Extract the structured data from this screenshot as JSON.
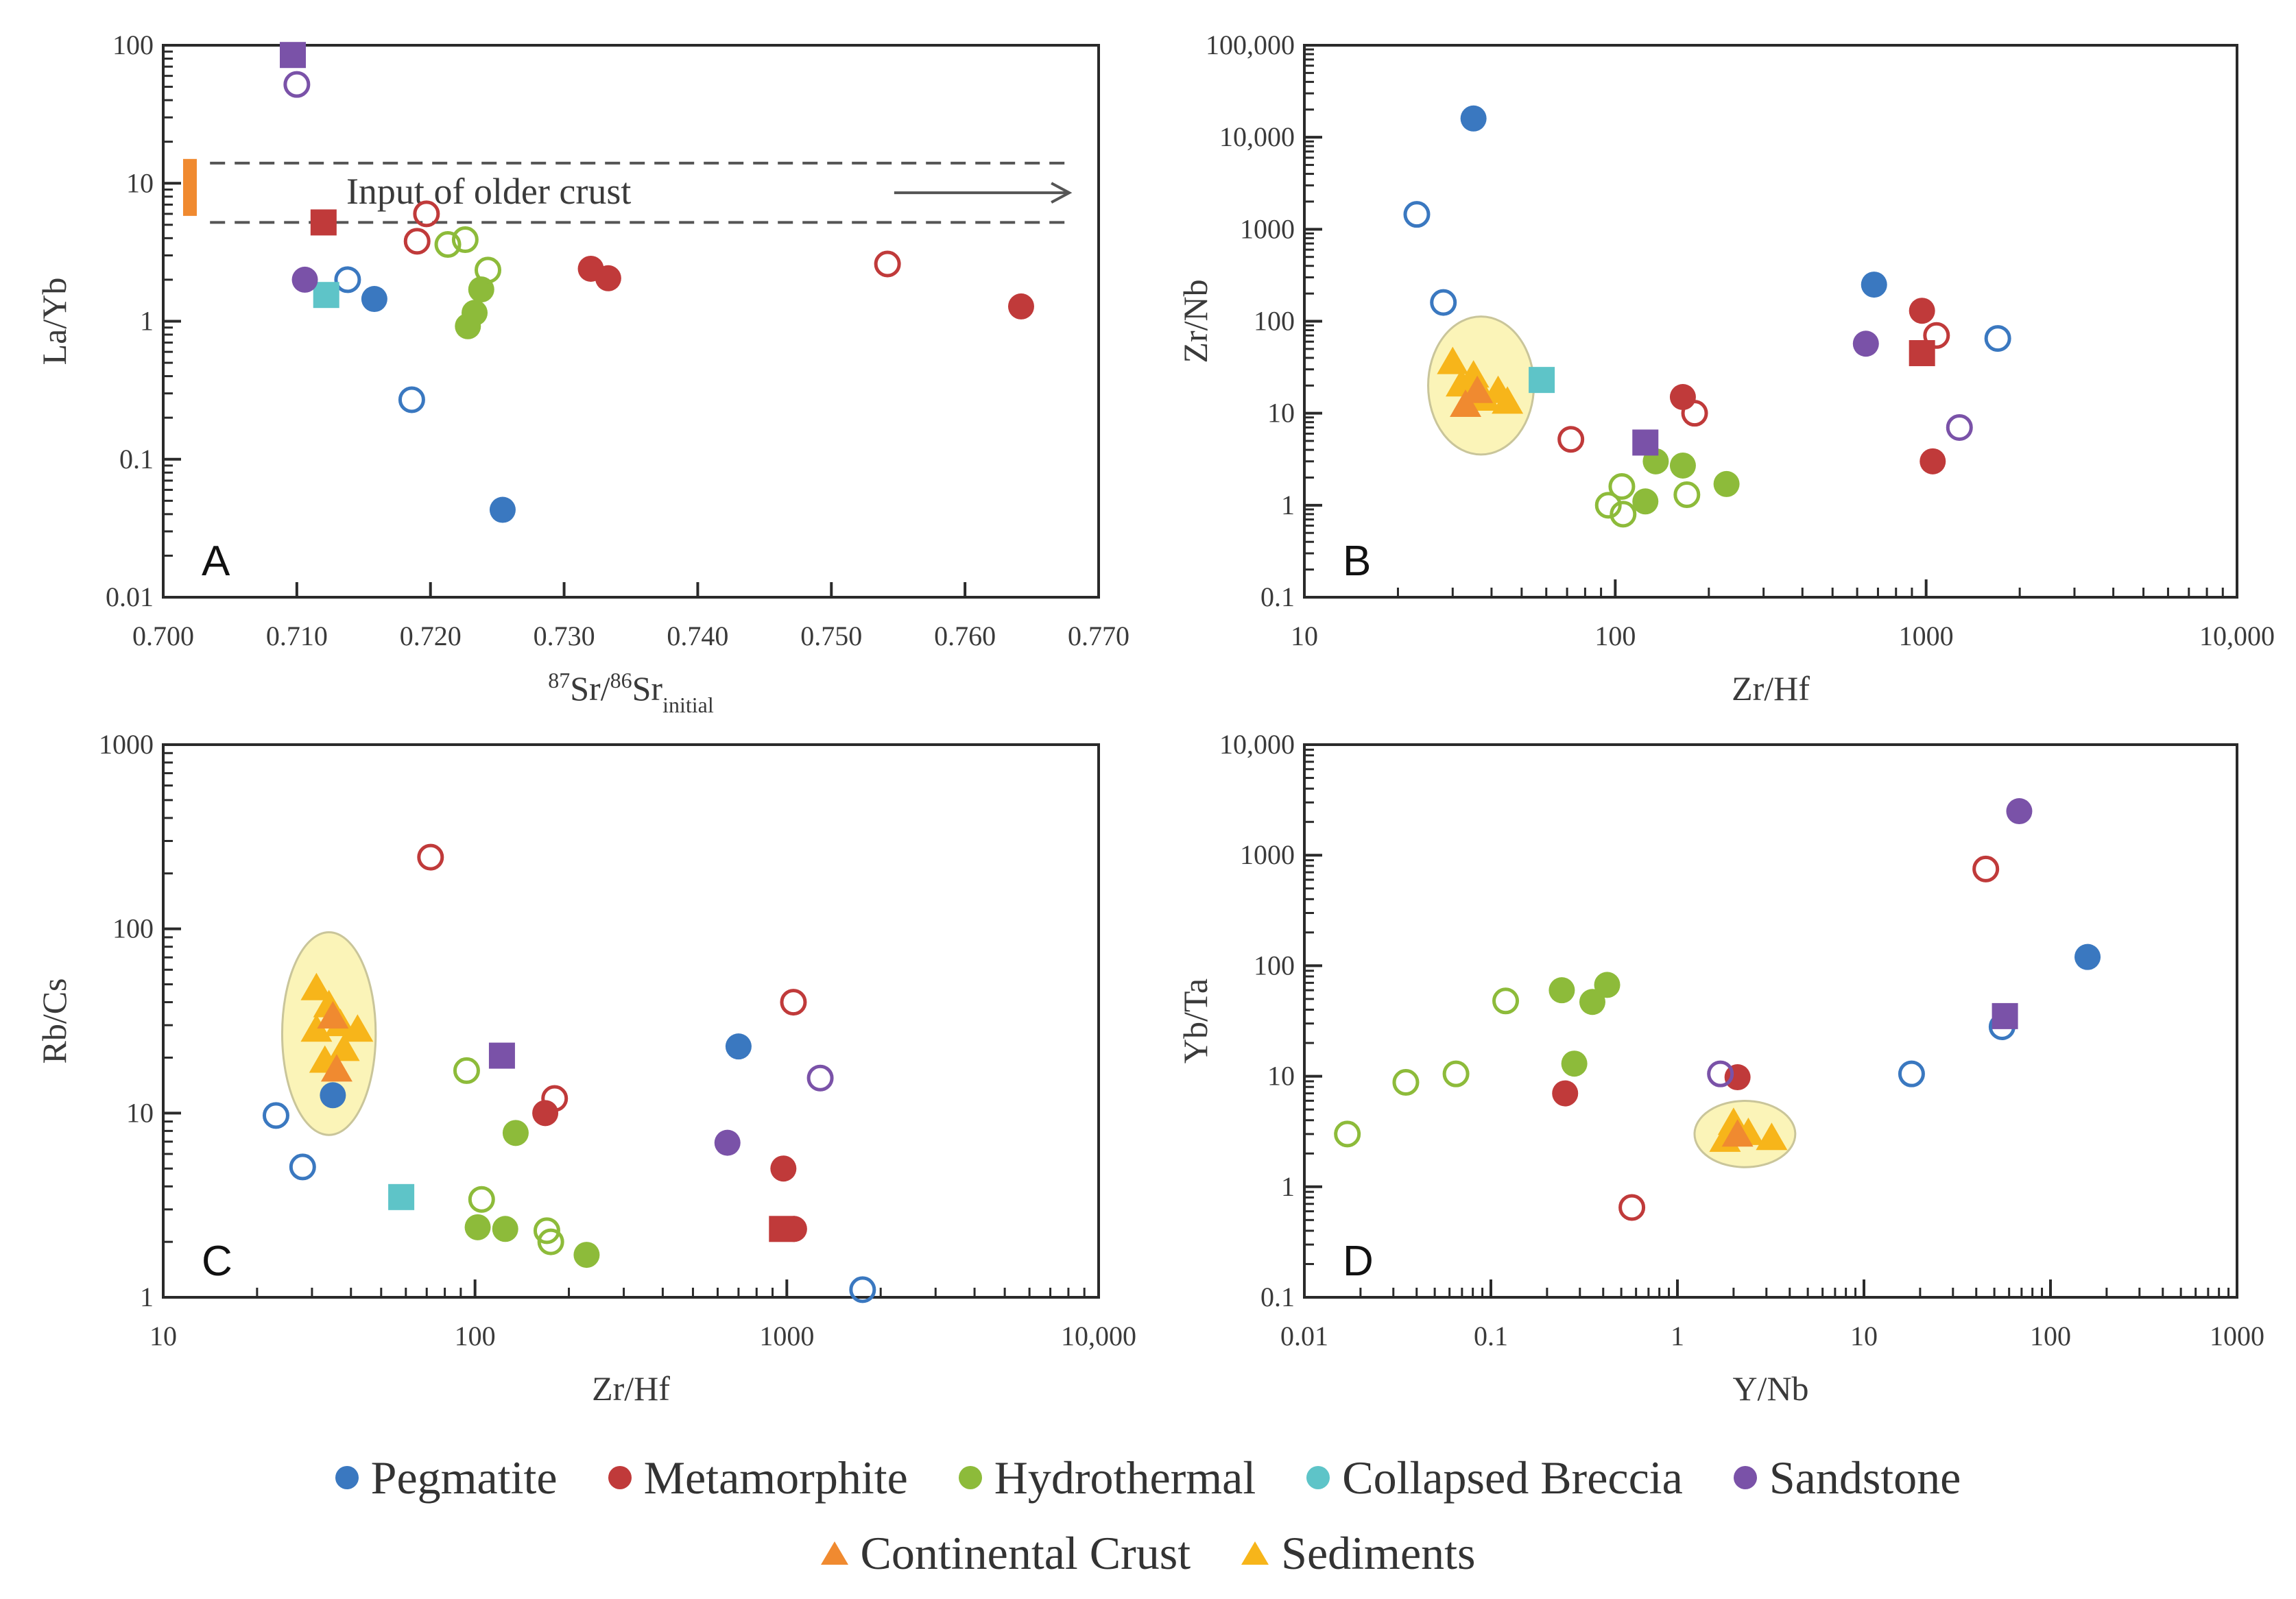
{
  "colors": {
    "Pegmatite": "#3a78c0",
    "Metamorphite": "#c03a3a",
    "Hydrothermal": "#8dbb3a",
    "Collapsed Breccia": "#5ec4c8",
    "Sandstone": "#7a52a8",
    "Continental Crust": "#f08a30",
    "Sediments": "#f7b51a",
    "ellipse": "#fbf4b8"
  },
  "legend": {
    "row1": [
      {
        "label": "Pegmatite",
        "color_key": "Pegmatite",
        "marker": "circle"
      },
      {
        "label": "Metamorphite",
        "color_key": "Metamorphite",
        "marker": "circle"
      },
      {
        "label": "Hydrothermal",
        "color_key": "Hydrothermal",
        "marker": "circle"
      },
      {
        "label": "Collapsed Breccia",
        "color_key": "Collapsed Breccia",
        "marker": "circle"
      },
      {
        "label": "Sandstone",
        "color_key": "Sandstone",
        "marker": "circle"
      }
    ],
    "row2": [
      {
        "label": "Continental Crust",
        "color_key": "Continental Crust",
        "marker": "triangle"
      },
      {
        "label": "Sediments",
        "color_key": "Sediments",
        "marker": "triangle"
      }
    ]
  },
  "chart_data": [
    {
      "panel": "A",
      "type": "scatter",
      "xscale": "linear",
      "yscale": "log",
      "xlim": [
        0.7,
        0.77
      ],
      "ylim": [
        0.01,
        100
      ],
      "xticks": [
        0.7,
        0.71,
        0.72,
        0.73,
        0.74,
        0.75,
        0.76,
        0.77
      ],
      "xtick_labels": [
        "0.700",
        "0.710",
        "0.720",
        "0.730",
        "0.740",
        "0.750",
        "0.760",
        "0.770"
      ],
      "yticks": [
        0.01,
        0.1,
        1,
        10,
        100
      ],
      "ytick_labels": [
        "0.01",
        "0.1",
        "1",
        "10",
        "100"
      ],
      "xlabel": {
        "base": "Sr/",
        "sup1": "87",
        "sup2": "86",
        "mid": "Sr",
        "sub": "initial"
      },
      "ylabel": "La/Yb",
      "annotation": "Input of older crust",
      "band": [
        5.2,
        14
      ],
      "orange_bar": [
        0.702,
        5.8,
        15
      ],
      "points": [
        {
          "s": "Pegmatite",
          "x": 0.7158,
          "y": 1.45,
          "f": true,
          "m": "o"
        },
        {
          "s": "Pegmatite",
          "x": 0.7254,
          "y": 0.043,
          "f": true,
          "m": "o"
        },
        {
          "s": "Pegmatite",
          "x": 0.7138,
          "y": 2.0,
          "f": false,
          "m": "o"
        },
        {
          "s": "Pegmatite",
          "x": 0.7186,
          "y": 0.27,
          "f": false,
          "m": "o"
        },
        {
          "s": "Metamorphite",
          "x": 0.732,
          "y": 2.4,
          "f": true,
          "m": "o"
        },
        {
          "s": "Metamorphite",
          "x": 0.7333,
          "y": 2.05,
          "f": true,
          "m": "o"
        },
        {
          "s": "Metamorphite",
          "x": 0.7642,
          "y": 1.28,
          "f": true,
          "m": "o"
        },
        {
          "s": "Metamorphite",
          "x": 0.7197,
          "y": 6.0,
          "f": false,
          "m": "o"
        },
        {
          "s": "Metamorphite",
          "x": 0.719,
          "y": 3.8,
          "f": false,
          "m": "o"
        },
        {
          "s": "Metamorphite",
          "x": 0.7542,
          "y": 2.6,
          "f": false,
          "m": "o"
        },
        {
          "s": "Metamorphite",
          "x": 0.712,
          "y": 5.2,
          "f": true,
          "m": "s"
        },
        {
          "s": "Hydrothermal",
          "x": 0.7238,
          "y": 1.7,
          "f": true,
          "m": "o"
        },
        {
          "s": "Hydrothermal",
          "x": 0.7233,
          "y": 1.15,
          "f": true,
          "m": "o"
        },
        {
          "s": "Hydrothermal",
          "x": 0.7228,
          "y": 0.92,
          "f": true,
          "m": "o"
        },
        {
          "s": "Hydrothermal",
          "x": 0.7213,
          "y": 3.6,
          "f": false,
          "m": "o"
        },
        {
          "s": "Hydrothermal",
          "x": 0.7226,
          "y": 3.9,
          "f": false,
          "m": "o"
        },
        {
          "s": "Hydrothermal",
          "x": 0.7243,
          "y": 2.35,
          "f": false,
          "m": "o"
        },
        {
          "s": "Collapsed Breccia",
          "x": 0.7122,
          "y": 1.55,
          "f": true,
          "m": "s"
        },
        {
          "s": "Sandstone",
          "x": 0.7106,
          "y": 2.0,
          "f": true,
          "m": "o"
        },
        {
          "s": "Sandstone",
          "x": 0.71,
          "y": 52,
          "f": false,
          "m": "o"
        },
        {
          "s": "Sandstone",
          "x": 0.7097,
          "y": 85,
          "f": true,
          "m": "s"
        }
      ]
    },
    {
      "panel": "B",
      "type": "scatter",
      "xscale": "log",
      "yscale": "log",
      "xlim": [
        10,
        10000
      ],
      "ylim": [
        0.1,
        100000
      ],
      "xticks": [
        10,
        100,
        1000,
        10000
      ],
      "xtick_labels": [
        "10",
        "100",
        "1000",
        "10,000"
      ],
      "yticks": [
        0.1,
        1,
        10,
        100,
        1000,
        10000,
        100000
      ],
      "ytick_labels": [
        "0.1",
        "1",
        "10",
        "100",
        "1000",
        "10,000",
        "100,000"
      ],
      "xlabel": "Zr/Hf",
      "ylabel": "Zr/Nb",
      "ellipse": {
        "cx": 37,
        "cy": 20,
        "rx_dec": 0.17,
        "ry_dec": 0.75
      },
      "triangles": [
        {
          "s": "Sediments",
          "x": 30,
          "y": 35
        },
        {
          "s": "Sediments",
          "x": 32,
          "y": 20
        },
        {
          "s": "Sediments",
          "x": 35,
          "y": 25
        },
        {
          "s": "Sediments",
          "x": 38,
          "y": 14
        },
        {
          "s": "Sediments",
          "x": 42,
          "y": 17
        },
        {
          "s": "Sediments",
          "x": 45,
          "y": 13
        },
        {
          "s": "Continental Crust",
          "x": 33,
          "y": 12
        },
        {
          "s": "Continental Crust",
          "x": 36,
          "y": 17
        }
      ],
      "points": [
        {
          "s": "Pegmatite",
          "x": 35,
          "y": 16000,
          "f": true,
          "m": "o"
        },
        {
          "s": "Pegmatite",
          "x": 680,
          "y": 250,
          "f": true,
          "m": "o"
        },
        {
          "s": "Pegmatite",
          "x": 23,
          "y": 1450,
          "f": false,
          "m": "o"
        },
        {
          "s": "Pegmatite",
          "x": 28,
          "y": 160,
          "f": false,
          "m": "o"
        },
        {
          "s": "Pegmatite",
          "x": 1700,
          "y": 65,
          "f": false,
          "m": "o"
        },
        {
          "s": "Metamorphite",
          "x": 165,
          "y": 15,
          "f": true,
          "m": "o"
        },
        {
          "s": "Metamorphite",
          "x": 970,
          "y": 130,
          "f": true,
          "m": "o"
        },
        {
          "s": "Metamorphite",
          "x": 1050,
          "y": 3.0,
          "f": true,
          "m": "o"
        },
        {
          "s": "Metamorphite",
          "x": 72,
          "y": 5.2,
          "f": false,
          "m": "o"
        },
        {
          "s": "Metamorphite",
          "x": 180,
          "y": 10,
          "f": false,
          "m": "o"
        },
        {
          "s": "Metamorphite",
          "x": 1080,
          "y": 70,
          "f": false,
          "m": "o"
        },
        {
          "s": "Metamorphite",
          "x": 970,
          "y": 45,
          "f": true,
          "m": "s"
        },
        {
          "s": "Hydrothermal",
          "x": 135,
          "y": 3.0,
          "f": true,
          "m": "o"
        },
        {
          "s": "Hydrothermal",
          "x": 165,
          "y": 2.7,
          "f": true,
          "m": "o"
        },
        {
          "s": "Hydrothermal",
          "x": 228,
          "y": 1.7,
          "f": true,
          "m": "o"
        },
        {
          "s": "Hydrothermal",
          "x": 125,
          "y": 1.1,
          "f": true,
          "m": "o"
        },
        {
          "s": "Hydrothermal",
          "x": 105,
          "y": 1.6,
          "f": false,
          "m": "o"
        },
        {
          "s": "Hydrothermal",
          "x": 95,
          "y": 1.0,
          "f": false,
          "m": "o"
        },
        {
          "s": "Hydrothermal",
          "x": 106,
          "y": 0.8,
          "f": false,
          "m": "o"
        },
        {
          "s": "Hydrothermal",
          "x": 170,
          "y": 1.3,
          "f": false,
          "m": "o"
        },
        {
          "s": "Collapsed Breccia",
          "x": 58,
          "y": 23,
          "f": true,
          "m": "s"
        },
        {
          "s": "Sandstone",
          "x": 640,
          "y": 57,
          "f": true,
          "m": "o"
        },
        {
          "s": "Sandstone",
          "x": 1280,
          "y": 7.0,
          "f": false,
          "m": "o"
        },
        {
          "s": "Sandstone",
          "x": 125,
          "y": 4.8,
          "f": true,
          "m": "s"
        }
      ]
    },
    {
      "panel": "C",
      "type": "scatter",
      "xscale": "log",
      "yscale": "log",
      "xlim": [
        10,
        10000
      ],
      "ylim": [
        1,
        1000
      ],
      "xticks": [
        10,
        100,
        1000,
        10000
      ],
      "xtick_labels": [
        "10",
        "100",
        "1000",
        "10,000"
      ],
      "yticks": [
        1,
        10,
        100,
        1000
      ],
      "ytick_labels": [
        "1",
        "10",
        "100",
        "1000"
      ],
      "xlabel": "Zr/Hf",
      "ylabel": "Rb/Cs",
      "ellipse": {
        "cx": 34,
        "cy": 27,
        "rx_dec": 0.15,
        "ry_dec": 0.55
      },
      "triangles": [
        {
          "s": "Sediments",
          "x": 31,
          "y": 47
        },
        {
          "s": "Sediments",
          "x": 34,
          "y": 38
        },
        {
          "s": "Sediments",
          "x": 31,
          "y": 28
        },
        {
          "s": "Sediments",
          "x": 37,
          "y": 30
        },
        {
          "s": "Sediments",
          "x": 42,
          "y": 28
        },
        {
          "s": "Sediments",
          "x": 33,
          "y": 19
        },
        {
          "s": "Sediments",
          "x": 38,
          "y": 22
        },
        {
          "s": "Continental Crust",
          "x": 35,
          "y": 33
        },
        {
          "s": "Continental Crust",
          "x": 36,
          "y": 17
        }
      ],
      "points": [
        {
          "s": "Pegmatite",
          "x": 35,
          "y": 12.5,
          "f": true,
          "m": "o"
        },
        {
          "s": "Pegmatite",
          "x": 700,
          "y": 23,
          "f": true,
          "m": "o"
        },
        {
          "s": "Pegmatite",
          "x": 23,
          "y": 9.7,
          "f": false,
          "m": "o"
        },
        {
          "s": "Pegmatite",
          "x": 28,
          "y": 5.1,
          "f": false,
          "m": "o"
        },
        {
          "s": "Pegmatite",
          "x": 1750,
          "y": 1.1,
          "f": false,
          "m": "o"
        },
        {
          "s": "Metamorphite",
          "x": 168,
          "y": 10,
          "f": true,
          "m": "o"
        },
        {
          "s": "Metamorphite",
          "x": 975,
          "y": 5.0,
          "f": true,
          "m": "o"
        },
        {
          "s": "Metamorphite",
          "x": 1055,
          "y": 2.35,
          "f": true,
          "m": "o"
        },
        {
          "s": "Metamorphite",
          "x": 72,
          "y": 245,
          "f": false,
          "m": "o"
        },
        {
          "s": "Metamorphite",
          "x": 180,
          "y": 12,
          "f": false,
          "m": "o"
        },
        {
          "s": "Metamorphite",
          "x": 1050,
          "y": 40,
          "f": false,
          "m": "o"
        },
        {
          "s": "Metamorphite",
          "x": 965,
          "y": 2.35,
          "f": true,
          "m": "s"
        },
        {
          "s": "Hydrothermal",
          "x": 135,
          "y": 7.8,
          "f": true,
          "m": "o"
        },
        {
          "s": "Hydrothermal",
          "x": 102,
          "y": 2.4,
          "f": true,
          "m": "o"
        },
        {
          "s": "Hydrothermal",
          "x": 125,
          "y": 2.35,
          "f": true,
          "m": "o"
        },
        {
          "s": "Hydrothermal",
          "x": 228,
          "y": 1.7,
          "f": true,
          "m": "o"
        },
        {
          "s": "Hydrothermal",
          "x": 94,
          "y": 17,
          "f": false,
          "m": "o"
        },
        {
          "s": "Hydrothermal",
          "x": 105,
          "y": 3.4,
          "f": false,
          "m": "o"
        },
        {
          "s": "Hydrothermal",
          "x": 170,
          "y": 2.3,
          "f": false,
          "m": "o"
        },
        {
          "s": "Hydrothermal",
          "x": 175,
          "y": 2.0,
          "f": false,
          "m": "o"
        },
        {
          "s": "Collapsed Breccia",
          "x": 58,
          "y": 3.5,
          "f": true,
          "m": "s"
        },
        {
          "s": "Sandstone",
          "x": 645,
          "y": 6.9,
          "f": true,
          "m": "o"
        },
        {
          "s": "Sandstone",
          "x": 1280,
          "y": 15.5,
          "f": false,
          "m": "o"
        },
        {
          "s": "Sandstone",
          "x": 122,
          "y": 20.5,
          "f": true,
          "m": "s"
        }
      ]
    },
    {
      "panel": "D",
      "type": "scatter",
      "xscale": "log",
      "yscale": "log",
      "xlim": [
        0.01,
        1000
      ],
      "ylim": [
        0.1,
        10000
      ],
      "xticks": [
        0.01,
        0.1,
        1,
        10,
        100,
        1000
      ],
      "xtick_labels": [
        "0.01",
        "0.1",
        "1",
        "10",
        "100",
        "1000"
      ],
      "yticks": [
        0.1,
        1,
        10,
        100,
        1000,
        10000
      ],
      "ytick_labels": [
        "0.1",
        "1",
        "10",
        "100",
        "1000",
        "10,000"
      ],
      "xlabel": "Y/Nb",
      "ylabel": "Yb/Ta",
      "ellipse": {
        "cx": 2.3,
        "cy": 3.0,
        "rx_dec": 0.27,
        "ry_dec": 0.3
      },
      "triangles": [
        {
          "s": "Sediments",
          "x": 2.0,
          "y": 3.7
        },
        {
          "s": "Sediments",
          "x": 2.4,
          "y": 3.0
        },
        {
          "s": "Sediments",
          "x": 3.2,
          "y": 2.7
        },
        {
          "s": "Sediments",
          "x": 1.8,
          "y": 2.6
        },
        {
          "s": "Continental Crust",
          "x": 2.1,
          "y": 2.9
        }
      ],
      "points": [
        {
          "s": "Pegmatite",
          "x": 158,
          "y": 120,
          "f": true,
          "m": "o"
        },
        {
          "s": "Pegmatite",
          "x": 18,
          "y": 10.5,
          "f": false,
          "m": "o"
        },
        {
          "s": "Pegmatite",
          "x": 55,
          "y": 28,
          "f": false,
          "m": "o"
        },
        {
          "s": "Metamorphite",
          "x": 0.25,
          "y": 7.0,
          "f": true,
          "m": "o"
        },
        {
          "s": "Metamorphite",
          "x": 2.1,
          "y": 9.8,
          "f": true,
          "m": "o"
        },
        {
          "s": "Metamorphite",
          "x": 0.57,
          "y": 0.65,
          "f": false,
          "m": "o"
        },
        {
          "s": "Metamorphite",
          "x": 45,
          "y": 750,
          "f": false,
          "m": "o"
        },
        {
          "s": "Hydrothermal",
          "x": 0.24,
          "y": 60,
          "f": true,
          "m": "o"
        },
        {
          "s": "Hydrothermal",
          "x": 0.35,
          "y": 47,
          "f": true,
          "m": "o"
        },
        {
          "s": "Hydrothermal",
          "x": 0.42,
          "y": 67,
          "f": true,
          "m": "o"
        },
        {
          "s": "Hydrothermal",
          "x": 0.28,
          "y": 13,
          "f": true,
          "m": "o"
        },
        {
          "s": "Hydrothermal",
          "x": 0.017,
          "y": 3.0,
          "f": false,
          "m": "o"
        },
        {
          "s": "Hydrothermal",
          "x": 0.035,
          "y": 8.8,
          "f": false,
          "m": "o"
        },
        {
          "s": "Hydrothermal",
          "x": 0.065,
          "y": 10.5,
          "f": false,
          "m": "o"
        },
        {
          "s": "Hydrothermal",
          "x": 0.12,
          "y": 48,
          "f": false,
          "m": "o"
        },
        {
          "s": "Sandstone",
          "x": 68,
          "y": 2500,
          "f": true,
          "m": "o"
        },
        {
          "s": "Sandstone",
          "x": 1.7,
          "y": 10.5,
          "f": false,
          "m": "o"
        },
        {
          "s": "Sandstone",
          "x": 57,
          "y": 35,
          "f": true,
          "m": "s"
        }
      ]
    }
  ]
}
